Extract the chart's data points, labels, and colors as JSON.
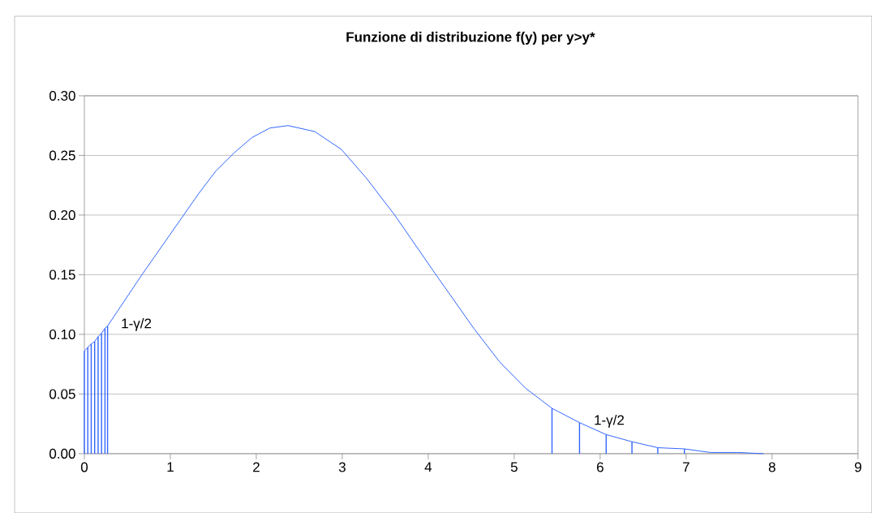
{
  "chart_data": {
    "type": "line",
    "title": "Funzione di distribuzione f(y) per y>y*",
    "xlim": [
      0,
      9
    ],
    "ylim": [
      0,
      0.3
    ],
    "xticks": [
      0,
      1,
      2,
      3,
      4,
      5,
      6,
      7,
      8,
      9
    ],
    "yticks": [
      {
        "value": 0,
        "label": "0.00"
      },
      {
        "value": 0.05,
        "label": "0.05"
      },
      {
        "value": 0.1,
        "label": "0.10"
      },
      {
        "value": 0.15,
        "label": "0.15"
      },
      {
        "value": 0.2,
        "label": "0.20"
      },
      {
        "value": 0.25,
        "label": "0.25"
      },
      {
        "value": 0.3,
        "label": "0.30"
      }
    ],
    "grid": "y",
    "marker": "none",
    "line_style": "solid",
    "series": [
      {
        "color": "#3366ff",
        "x": [
          0,
          0.04,
          0.08,
          0.12,
          0.16,
          0.2,
          0.24,
          0.27,
          0.67,
          1.33,
          1.53,
          1.74,
          1.95,
          2.16,
          2.37,
          2.68,
          2.99,
          3.28,
          3.61,
          4.08,
          4.53,
          4.83,
          5.13,
          5.44,
          5.76,
          6.07,
          6.37,
          6.67,
          6.98,
          7.28,
          7.6,
          7.9
        ],
        "values": [
          0.086,
          0.089,
          0.092,
          0.094,
          0.098,
          0.101,
          0.105,
          0.107,
          0.15,
          0.218,
          0.237,
          0.252,
          0.265,
          0.273,
          0.275,
          0.27,
          0.255,
          0.231,
          0.2,
          0.151,
          0.105,
          0.077,
          0.055,
          0.038,
          0.026,
          0.016,
          0.01,
          0.005,
          0.004,
          0.001,
          0.001,
          0
        ]
      },
      {
        "type": "bar",
        "color": "#3366ff",
        "x": [
          0,
          0.04,
          0.08,
          0.12,
          0.16,
          0.2,
          0.24,
          0.27,
          5.44,
          5.76,
          6.07,
          6.37,
          6.67,
          6.98
        ],
        "values": [
          0.086,
          0.089,
          0.092,
          0.094,
          0.098,
          0.101,
          0.105,
          0.107,
          0.038,
          0.026,
          0.016,
          0.01,
          0.005,
          0.004
        ]
      }
    ],
    "annotations": [
      "1-γ/2",
      "1-γ/2"
    ]
  }
}
